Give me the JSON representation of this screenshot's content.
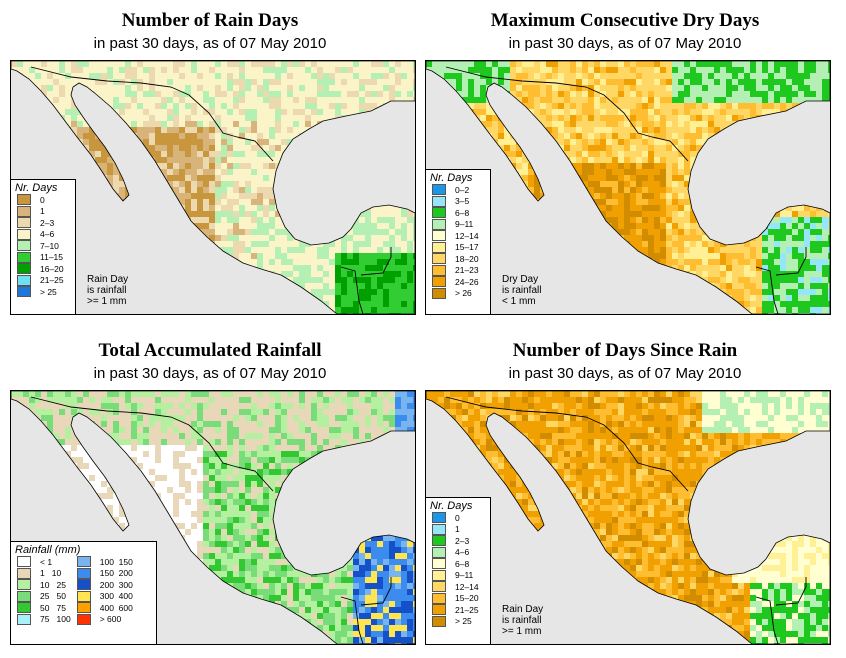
{
  "panels": {
    "rain_days": {
      "title": "Number of Rain Days",
      "subtitle": "in past 30 days, as of  07 May 2010",
      "legend_title": "Nr. Days",
      "legend": [
        {
          "label": "0",
          "color": "#c8963c"
        },
        {
          "label": "1",
          "color": "#d8b47a"
        },
        {
          "label": "2–3",
          "color": "#ecd9b0"
        },
        {
          "label": "4–6",
          "color": "#faf4c8"
        },
        {
          "label": "7–10",
          "color": "#b4f0b4"
        },
        {
          "label": "11–15",
          "color": "#32cd32"
        },
        {
          "label": "16–20",
          "color": "#00a000"
        },
        {
          "label": "21–25",
          "color": "#6ee0f0"
        },
        {
          "label": "> 25",
          "color": "#1e78dc"
        }
      ],
      "note": [
        "Rain Day",
        "is rainfall",
        ">= 1 mm"
      ]
    },
    "dry_days": {
      "title": "Maximum Consecutive Dry Days",
      "subtitle": "in past 30 days, as of  07 May 2010",
      "legend_title": "Nr. Days",
      "legend": [
        {
          "label": "0–2",
          "color": "#1e96e6"
        },
        {
          "label": "3–5",
          "color": "#96e6fa"
        },
        {
          "label": "6–8",
          "color": "#1ec81e"
        },
        {
          "label": "9–11",
          "color": "#b4f0b4"
        },
        {
          "label": "12–14",
          "color": "#ffffd2"
        },
        {
          "label": "15–17",
          "color": "#fff096"
        },
        {
          "label": "18–20",
          "color": "#ffd764"
        },
        {
          "label": "21–23",
          "color": "#ffbe32"
        },
        {
          "label": "24–26",
          "color": "#f0a000"
        },
        {
          "label": "> 26",
          "color": "#d28c00"
        }
      ],
      "note": [
        "Dry Day",
        "is rainfall",
        "< 1 mm"
      ]
    },
    "total_rain": {
      "title": "Total Accumulated Rainfall",
      "subtitle": "in past 30 days, as of  07 May 2010",
      "legend_title": "Rainfall (mm)",
      "legend_left": [
        {
          "label": "< 1",
          "color": "#ffffff"
        },
        {
          "label": "1   10",
          "color": "#e8d7b8"
        },
        {
          "label": "10   25",
          "color": "#b4f0a0"
        },
        {
          "label": "25   50",
          "color": "#78dc78"
        },
        {
          "label": "50   75",
          "color": "#32c832"
        },
        {
          "label": "75   100",
          "color": "#aaf0fa"
        }
      ],
      "legend_right": [
        {
          "label": "100  150",
          "color": "#78b4f0"
        },
        {
          "label": "150  200",
          "color": "#3c8cf0"
        },
        {
          "label": "200  300",
          "color": "#1450c8"
        },
        {
          "label": "300  400",
          "color": "#ffe650"
        },
        {
          "label": "400  600",
          "color": "#ffa000"
        },
        {
          "label": "> 600",
          "color": "#ff3200"
        }
      ]
    },
    "since_rain": {
      "title": "Number of Days Since Rain",
      "subtitle": "in past 30 days, as of  07 May 2010",
      "legend_title": "Nr. Days",
      "legend": [
        {
          "label": "0",
          "color": "#1e96e6"
        },
        {
          "label": "1",
          "color": "#96e6fa"
        },
        {
          "label": "2–3",
          "color": "#1ec81e"
        },
        {
          "label": "4–6",
          "color": "#b4f0b4"
        },
        {
          "label": "6–8",
          "color": "#ffffd2"
        },
        {
          "label": "9–11",
          "color": "#fff096"
        },
        {
          "label": "12–14",
          "color": "#ffd764"
        },
        {
          "label": "15–20",
          "color": "#ffbe32"
        },
        {
          "label": "21–25",
          "color": "#f0a000"
        },
        {
          "label": "> 25",
          "color": "#d28c00"
        }
      ],
      "note": [
        "Rain Day",
        "is rainfall",
        ">= 1 mm"
      ]
    }
  },
  "colors": {
    "ocean": "#e6e6e6",
    "border": "#000000"
  }
}
